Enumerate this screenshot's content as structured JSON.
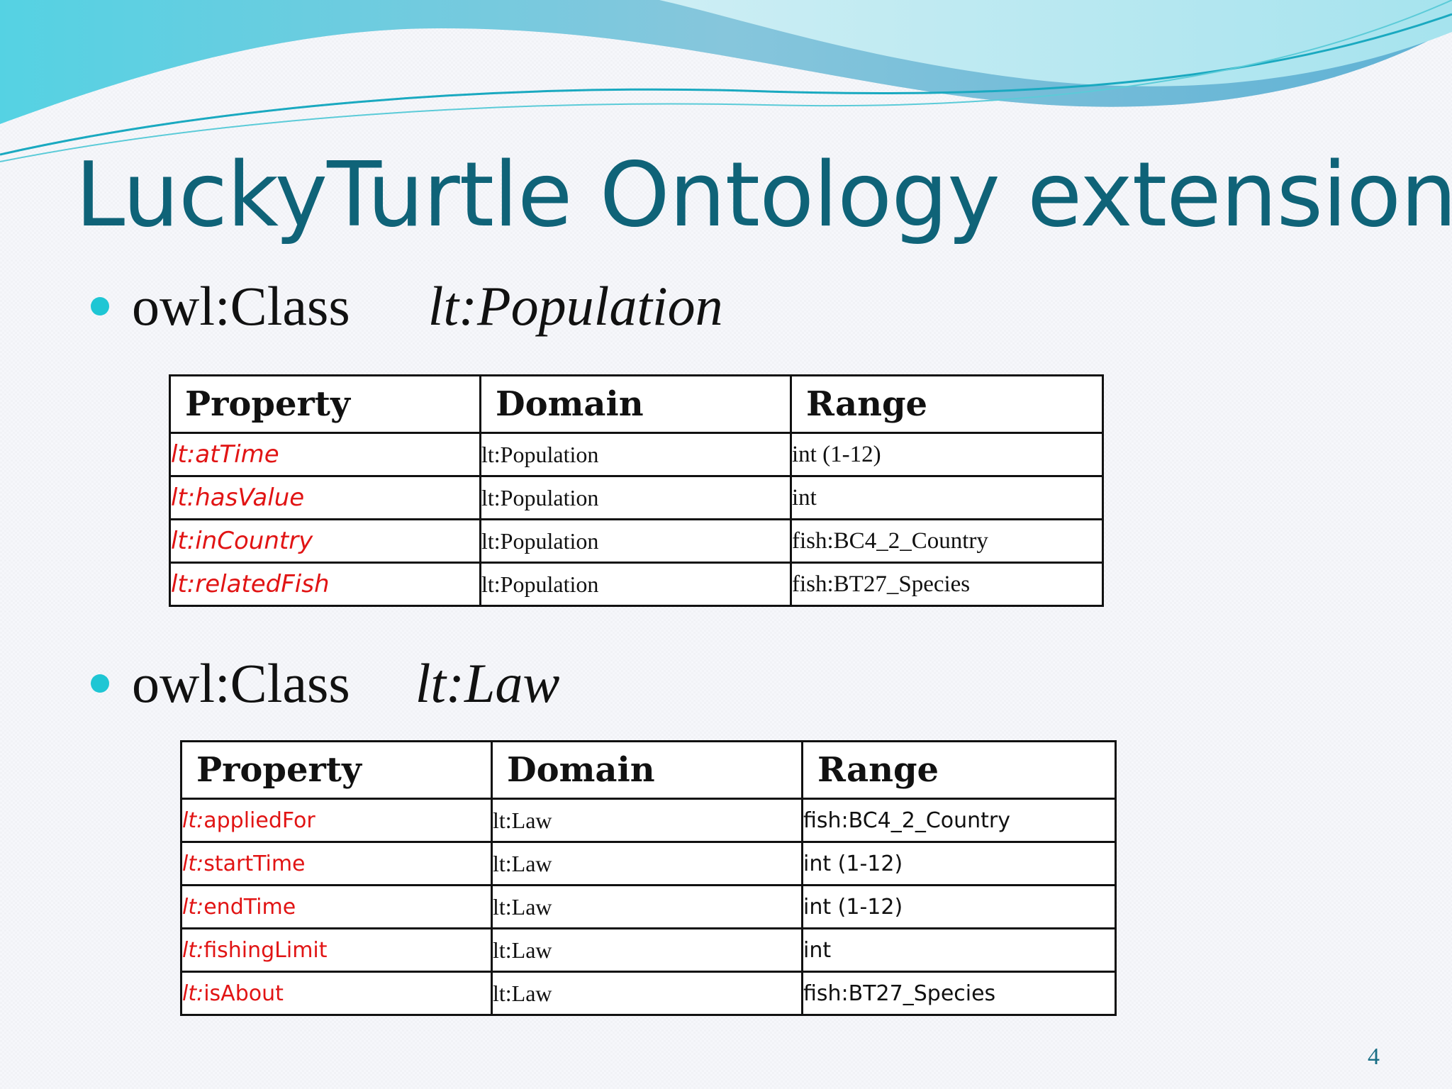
{
  "slide": {
    "title": "LuckyTurtle Ontology extension",
    "page_number": "4",
    "accent_color": "#1fc6d4",
    "title_color": "#0f6378",
    "property_color": "#e11414"
  },
  "sections": [
    {
      "class_keyword": "owl:Class",
      "class_name": "lt:Population",
      "table": {
        "headers": [
          "Property",
          "Domain",
          "Range"
        ],
        "rows": [
          {
            "prefix": "lt:",
            "name": "atTime",
            "domain": "lt:Population",
            "range": "int (1-12)"
          },
          {
            "prefix": "lt:",
            "name": "hasValue",
            "domain": "lt:Population",
            "range": "int"
          },
          {
            "prefix": "lt:",
            "name": "inCountry",
            "domain": "lt:Population",
            "range": "fish:BC4_2_Country"
          },
          {
            "prefix": "lt:",
            "name": "relatedFish",
            "domain": "lt:Population",
            "range": "fish:BT27_Species"
          }
        ]
      }
    },
    {
      "class_keyword": "owl:Class",
      "class_name": "lt:Law",
      "table": {
        "headers": [
          "Property",
          "Domain",
          "Range"
        ],
        "rows": [
          {
            "prefix": "lt:",
            "name": "appliedFor",
            "domain": "lt:Law",
            "range": "fish:BC4_2_Country"
          },
          {
            "prefix": "lt:",
            "name": "startTime",
            "domain": "lt:Law",
            "range": "int (1-12)"
          },
          {
            "prefix": "lt:",
            "name": "endTime",
            "domain": "lt:Law",
            "range": "int (1-12)"
          },
          {
            "prefix": "lt:",
            "name": "fishingLimit",
            "domain": "lt:Law",
            "range": "int"
          },
          {
            "prefix": "lt:",
            "name": "isAbout",
            "domain": "lt:Law",
            "range": "fish:BT27_Species"
          }
        ]
      }
    }
  ]
}
